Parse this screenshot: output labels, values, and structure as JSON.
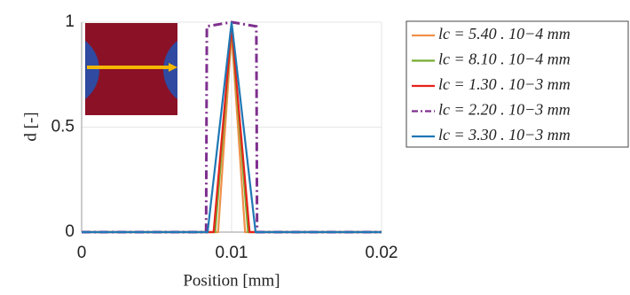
{
  "chart_data": {
    "type": "line",
    "ylabel": "d [-]",
    "xlabel": "Position [mm]",
    "xlim": [
      0,
      0.02
    ],
    "xticks": [
      0,
      0.01,
      0.02
    ],
    "ylim": [
      0,
      1
    ],
    "yticks": [
      0,
      0.5,
      1
    ],
    "grid": true,
    "series": [
      {
        "name": "lc = 5.40 . 10−4 mm",
        "color": "#f0904a",
        "linestyle": "-",
        "x": [
          0,
          0.0091,
          0.01,
          0.0109,
          0.02
        ],
        "values": [
          0,
          0,
          0.95,
          0,
          0
        ]
      },
      {
        "name": "lc = 8.10 . 10−4 mm",
        "color": "#77ac30",
        "linestyle": "-",
        "x": [
          0,
          0.0089,
          0.01,
          0.0111,
          0.02
        ],
        "values": [
          0,
          0,
          0.97,
          0,
          0
        ]
      },
      {
        "name": "lc = 1.30 . 10−3 mm",
        "color": "#e8211a",
        "linestyle": "-",
        "x": [
          0,
          0.0088,
          0.01,
          0.0112,
          0.02
        ],
        "values": [
          0,
          0,
          0.98,
          0,
          0
        ]
      },
      {
        "name": "lc = 2.20 . 10−3 mm",
        "color": "#7e2f8e",
        "linestyle": "-.",
        "x": [
          0,
          0.0083,
          0.00835,
          0.01,
          0.01165,
          0.0117,
          0.02
        ],
        "values": [
          0,
          0,
          0.98,
          1,
          0.98,
          0,
          0
        ]
      },
      {
        "name": "lc = 3.30 . 10−3 mm",
        "color": "#1f77b4",
        "linestyle": "-",
        "x": [
          0,
          0.0084,
          0.01,
          0.0116,
          0.02
        ],
        "values": [
          0,
          0,
          1,
          0,
          0
        ]
      }
    ]
  }
}
